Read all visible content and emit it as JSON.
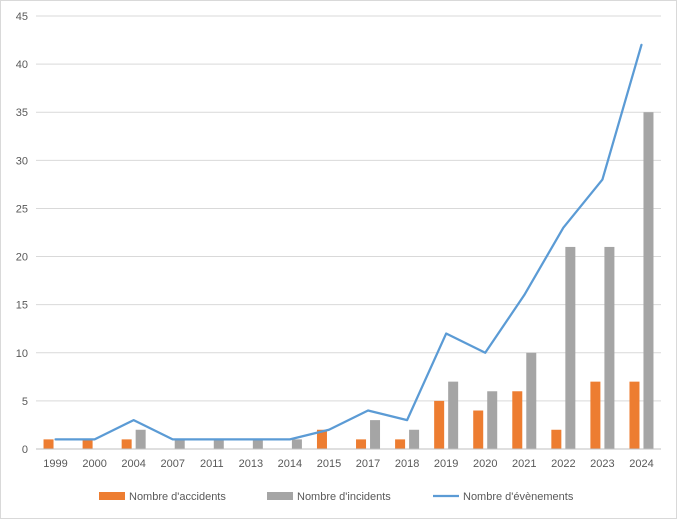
{
  "chart_data": {
    "type": "bar",
    "categories": [
      "1999",
      "2000",
      "2004",
      "2007",
      "2011",
      "2013",
      "2014",
      "2015",
      "2017",
      "2018",
      "2019",
      "2020",
      "2021",
      "2022",
      "2023",
      "2024"
    ],
    "series": [
      {
        "name": "Nombre d'accidents",
        "type": "bar",
        "color": "#ed7d31",
        "values": [
          1,
          1,
          1,
          0,
          0,
          0,
          0,
          2,
          1,
          1,
          5,
          4,
          6,
          2,
          7,
          7
        ]
      },
      {
        "name": "Nombre d'incidents",
        "type": "bar",
        "color": "#a5a5a5",
        "values": [
          0,
          0,
          2,
          1,
          1,
          1,
          1,
          0,
          3,
          2,
          7,
          6,
          10,
          21,
          21,
          35
        ]
      },
      {
        "name": "Nombre d'évènements",
        "type": "line",
        "color": "#5b9bd5",
        "values": [
          1,
          1,
          3,
          1,
          1,
          1,
          1,
          2,
          4,
          3,
          12,
          10,
          16,
          23,
          28,
          42
        ]
      }
    ],
    "ylim": [
      0,
      45
    ],
    "y_ticks": [
      0,
      5,
      10,
      15,
      20,
      25,
      30,
      35,
      40,
      45
    ],
    "grid": true,
    "legend_position": "bottom",
    "title": "",
    "xlabel": "",
    "ylabel": ""
  }
}
